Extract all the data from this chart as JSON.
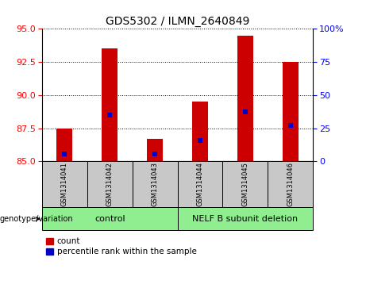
{
  "title": "GDS5302 / ILMN_2640849",
  "samples": [
    "GSM1314041",
    "GSM1314042",
    "GSM1314043",
    "GSM1314044",
    "GSM1314045",
    "GSM1314046"
  ],
  "count_values": [
    87.5,
    93.5,
    86.7,
    89.5,
    94.5,
    92.5
  ],
  "percentile_values": [
    85.55,
    88.5,
    85.55,
    86.55,
    88.7,
    87.7
  ],
  "ylim_left": [
    85,
    95
  ],
  "ylim_right": [
    0,
    100
  ],
  "yticks_left": [
    85,
    87.5,
    90,
    92.5,
    95
  ],
  "yticks_right": [
    0,
    25,
    50,
    75,
    100
  ],
  "bar_color": "#CC0000",
  "marker_color": "#0000CC",
  "group_labels": [
    "control",
    "NELF B subunit deletion"
  ],
  "group_color": "#90EE90",
  "genotype_label": "genotype/variation",
  "legend_count": "count",
  "legend_percentile": "percentile rank within the sample",
  "bg_color": "#C8C8C8",
  "plot_bg": "#FFFFFF",
  "title_fontsize": 10,
  "tick_fontsize": 8,
  "sample_fontsize": 6,
  "group_fontsize": 8,
  "legend_fontsize": 7.5,
  "geno_fontsize": 7
}
